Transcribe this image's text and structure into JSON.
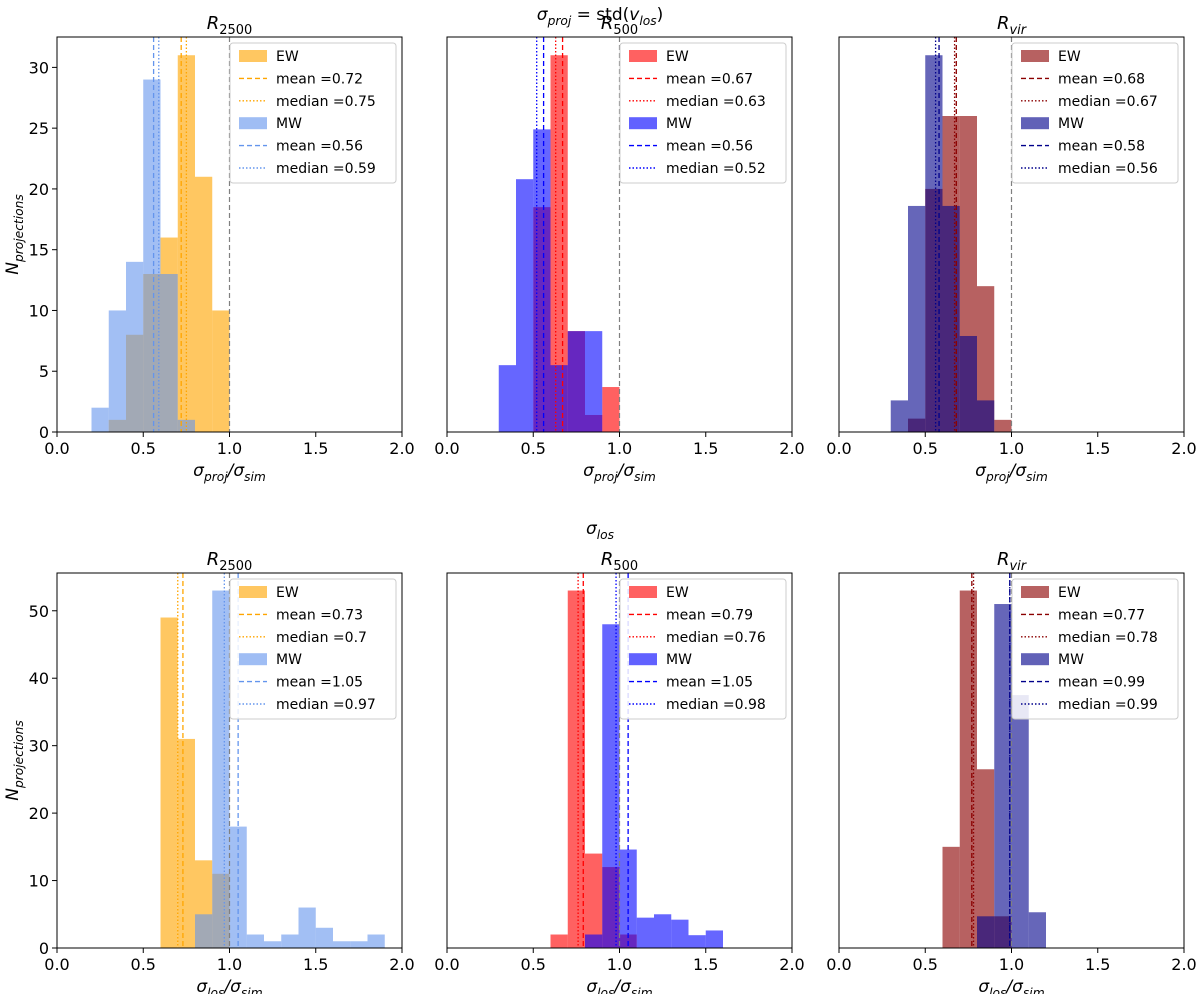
{
  "colors": {
    "EW": [
      "#FFA500",
      "#FF0000",
      "#8B0000"
    ],
    "MW": [
      "#6495ED",
      "#0000FF",
      "#00008B"
    ],
    "ref_line": "#808080"
  },
  "chart_data": [
    {
      "type": "histogram",
      "row_title": "σproj = std(vlos)",
      "row_title_parts": {
        "a": "σ",
        "a_sub": "proj",
        "eq": " = std(",
        "b": "v",
        "b_sub": "los",
        "close": ")"
      },
      "xlabel": {
        "main": "σ",
        "sub1": "proj",
        "mid": "/σ",
        "sub2": "sim"
      },
      "ylabel": {
        "main": "N",
        "sub": "projections"
      },
      "xlim": [
        0.0,
        2.0
      ],
      "xticks": [
        "0.0",
        "0.5",
        "1.0",
        "1.5",
        "2.0"
      ],
      "ylim": [
        0,
        32.5
      ],
      "yticks": [
        0,
        5,
        10,
        15,
        20,
        25,
        30
      ],
      "reference_line_x": 1.0,
      "panels": [
        {
          "title": {
            "main": "R",
            "sub": "2500"
          },
          "show_yticks": true,
          "series": [
            {
              "name": "EW",
              "color": "#FFA500",
              "mean": 0.72,
              "median": 0.75,
              "mean_label": "mean =0.72",
              "median_label": "median =0.75",
              "bins": [
                [
                  0.3,
                  0.4,
                  1
                ],
                [
                  0.4,
                  0.5,
                  8
                ],
                [
                  0.5,
                  0.6,
                  13
                ],
                [
                  0.6,
                  0.7,
                  16
                ],
                [
                  0.7,
                  0.8,
                  31
                ],
                [
                  0.8,
                  0.9,
                  21
                ],
                [
                  0.9,
                  1.0,
                  10
                ]
              ]
            },
            {
              "name": "MW",
              "color": "#6495ED",
              "mean": 0.56,
              "median": 0.59,
              "mean_label": "mean =0.56",
              "median_label": "median =0.59",
              "bins": [
                [
                  0.2,
                  0.3,
                  2
                ],
                [
                  0.3,
                  0.4,
                  10
                ],
                [
                  0.4,
                  0.5,
                  14
                ],
                [
                  0.5,
                  0.6,
                  29
                ],
                [
                  0.6,
                  0.7,
                  13
                ],
                [
                  0.7,
                  0.8,
                  1
                ]
              ]
            }
          ]
        },
        {
          "title": {
            "main": "R",
            "sub": "500"
          },
          "show_yticks": false,
          "series": [
            {
              "name": "EW",
              "color": "#FF0000",
              "mean": 0.67,
              "median": 0.63,
              "mean_label": "mean =0.67",
              "median_label": "median =0.63",
              "bins": [
                [
                  0.5,
                  0.6,
                  18.5
                ],
                [
                  0.6,
                  0.7,
                  31
                ],
                [
                  0.7,
                  0.8,
                  8.3
                ],
                [
                  0.8,
                  0.9,
                  1.4
                ],
                [
                  0.9,
                  1.0,
                  3.7
                ]
              ]
            },
            {
              "name": "MW",
              "color": "#0000FF",
              "mean": 0.56,
              "median": 0.52,
              "mean_label": "mean =0.56",
              "median_label": "median =0.52",
              "bins": [
                [
                  0.3,
                  0.4,
                  5.5
                ],
                [
                  0.4,
                  0.5,
                  20.8
                ],
                [
                  0.5,
                  0.6,
                  24.9
                ],
                [
                  0.6,
                  0.7,
                  5.5
                ],
                [
                  0.7,
                  0.8,
                  8.3
                ],
                [
                  0.8,
                  0.9,
                  8.3
                ]
              ]
            }
          ]
        },
        {
          "title": {
            "main": "R",
            "sub": "vir"
          },
          "show_yticks": false,
          "series": [
            {
              "name": "EW",
              "color": "#8B0000",
              "mean": 0.68,
              "median": 0.67,
              "mean_label": "mean =0.68",
              "median_label": "median =0.67",
              "bins": [
                [
                  0.4,
                  0.5,
                  1.1
                ],
                [
                  0.5,
                  0.6,
                  20
                ],
                [
                  0.6,
                  0.7,
                  26
                ],
                [
                  0.7,
                  0.8,
                  26
                ],
                [
                  0.8,
                  0.9,
                  12
                ],
                [
                  0.9,
                  1.0,
                  1
                ]
              ]
            },
            {
              "name": "MW",
              "color": "#00008B",
              "mean": 0.58,
              "median": 0.56,
              "mean_label": "mean =0.58",
              "median_label": "median =0.56",
              "bins": [
                [
                  0.3,
                  0.4,
                  2.6
                ],
                [
                  0.4,
                  0.5,
                  18.6
                ],
                [
                  0.5,
                  0.6,
                  31
                ],
                [
                  0.6,
                  0.7,
                  18.6
                ],
                [
                  0.7,
                  0.8,
                  7.9
                ],
                [
                  0.8,
                  0.9,
                  2.6
                ]
              ]
            }
          ]
        }
      ]
    },
    {
      "type": "histogram",
      "row_title": "σlos",
      "row_title_parts": {
        "a": "σ",
        "a_sub": "los",
        "eq": "",
        "b": "",
        "b_sub": "",
        "close": ""
      },
      "xlabel": {
        "main": "σ",
        "sub1": "los",
        "mid": "/σ",
        "sub2": "sim"
      },
      "ylabel": {
        "main": "N",
        "sub": "projections"
      },
      "xlim": [
        0.0,
        2.0
      ],
      "xticks": [
        "0.0",
        "0.5",
        "1.0",
        "1.5",
        "2.0"
      ],
      "ylim": [
        0,
        55.6
      ],
      "yticks": [
        0,
        10,
        20,
        30,
        40,
        50
      ],
      "reference_line_x": 1.0,
      "panels": [
        {
          "title": {
            "main": "R",
            "sub": "2500"
          },
          "show_yticks": true,
          "series": [
            {
              "name": "EW",
              "color": "#FFA500",
              "mean": 0.73,
              "median": 0.7,
              "mean_label": "mean =0.73",
              "median_label": "median =0.7",
              "bins": [
                [
                  0.6,
                  0.7,
                  49
                ],
                [
                  0.7,
                  0.8,
                  31
                ],
                [
                  0.8,
                  0.9,
                  13
                ],
                [
                  0.9,
                  1.0,
                  11
                ],
                [
                  1.0,
                  1.1,
                  0
                ]
              ]
            },
            {
              "name": "MW",
              "color": "#6495ED",
              "mean": 1.05,
              "median": 0.97,
              "mean_label": "mean =1.05",
              "median_label": "median =0.97",
              "bins": [
                [
                  0.8,
                  0.9,
                  5
                ],
                [
                  0.9,
                  1.0,
                  53
                ],
                [
                  1.0,
                  1.1,
                  18
                ],
                [
                  1.1,
                  1.2,
                  2
                ],
                [
                  1.2,
                  1.3,
                  1
                ],
                [
                  1.3,
                  1.4,
                  2
                ],
                [
                  1.4,
                  1.5,
                  6
                ],
                [
                  1.5,
                  1.6,
                  3
                ],
                [
                  1.6,
                  1.7,
                  1
                ],
                [
                  1.7,
                  1.8,
                  1
                ],
                [
                  1.8,
                  1.9,
                  2
                ]
              ]
            }
          ]
        },
        {
          "title": {
            "main": "R",
            "sub": "500"
          },
          "show_yticks": false,
          "series": [
            {
              "name": "EW",
              "color": "#FF0000",
              "mean": 0.79,
              "median": 0.76,
              "mean_label": "mean =0.79",
              "median_label": "median =0.76",
              "bins": [
                [
                  0.6,
                  0.7,
                  2
                ],
                [
                  0.7,
                  0.8,
                  53
                ],
                [
                  0.8,
                  0.9,
                  14
                ],
                [
                  0.9,
                  1.0,
                  12
                ],
                [
                  1.0,
                  1.1,
                  2
                ]
              ]
            },
            {
              "name": "MW",
              "color": "#0000FF",
              "mean": 1.05,
              "median": 0.98,
              "mean_label": "mean =1.05",
              "median_label": "median =0.98",
              "bins": [
                [
                  0.8,
                  0.9,
                  2
                ],
                [
                  0.9,
                  1.0,
                  48
                ],
                [
                  1.0,
                  1.1,
                  14.6
                ],
                [
                  1.1,
                  1.2,
                  4.5
                ],
                [
                  1.2,
                  1.3,
                  5
                ],
                [
                  1.3,
                  1.4,
                  4.2
                ],
                [
                  1.4,
                  1.5,
                  1.9
                ],
                [
                  1.5,
                  1.6,
                  2.6
                ]
              ]
            }
          ]
        },
        {
          "title": {
            "main": "R",
            "sub": "vir"
          },
          "show_yticks": false,
          "series": [
            {
              "name": "EW",
              "color": "#8B0000",
              "mean": 0.77,
              "median": 0.78,
              "mean_label": "mean =0.77",
              "median_label": "median =0.78",
              "bins": [
                [
                  0.6,
                  0.7,
                  15
                ],
                [
                  0.7,
                  0.8,
                  53
                ],
                [
                  0.8,
                  0.9,
                  26.5
                ],
                [
                  0.9,
                  1.0,
                  4.7
                ]
              ]
            },
            {
              "name": "MW",
              "color": "#00008B",
              "mean": 0.99,
              "median": 0.99,
              "mean_label": "mean =0.99",
              "median_label": "median =0.99",
              "bins": [
                [
                  0.8,
                  0.9,
                  4.7
                ],
                [
                  0.9,
                  1.0,
                  51
                ],
                [
                  1.0,
                  1.1,
                  37.5
                ],
                [
                  1.1,
                  1.2,
                  5.3
                ]
              ]
            }
          ]
        }
      ]
    }
  ]
}
